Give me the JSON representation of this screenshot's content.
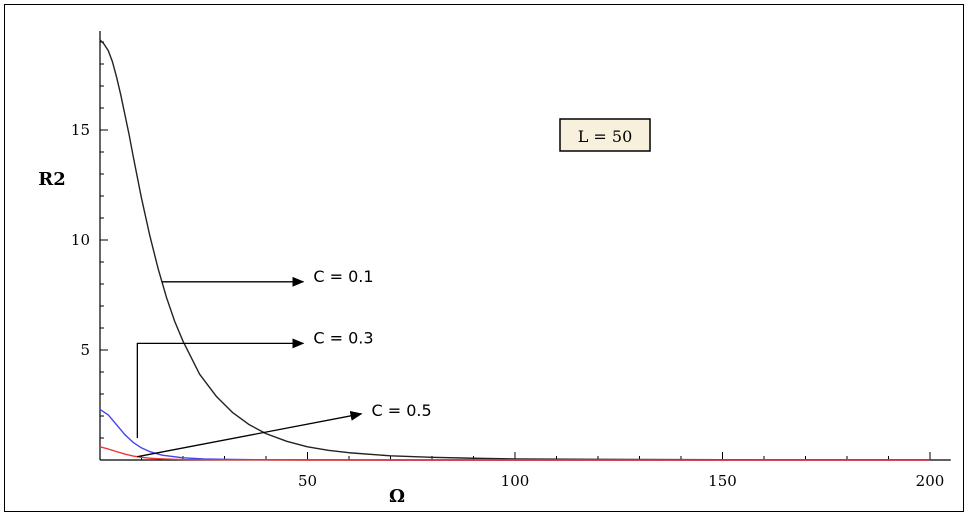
{
  "chart_data": {
    "type": "line",
    "xlabel": "Ω",
    "ylabel": "R2",
    "xlim": [
      0,
      205
    ],
    "ylim": [
      0,
      19.5
    ],
    "x_ticks": [
      50,
      100,
      150,
      200
    ],
    "y_ticks": [
      5,
      10,
      15
    ],
    "grid": false,
    "legend_box": "L = 50",
    "series": [
      {
        "color": "#222222",
        "x": [
          0,
          1,
          2,
          3,
          4,
          5,
          6,
          7,
          8,
          10,
          12,
          14,
          16,
          18,
          20,
          24,
          28,
          32,
          36,
          40,
          45,
          50,
          55,
          60,
          70,
          80,
          90,
          100,
          120,
          140,
          160,
          180,
          200
        ],
        "y": [
          19.1,
          18.9,
          18.6,
          18.1,
          17.4,
          16.6,
          15.7,
          14.8,
          13.8,
          11.9,
          10.2,
          8.7,
          7.4,
          6.3,
          5.4,
          3.9,
          2.9,
          2.15,
          1.6,
          1.2,
          0.85,
          0.6,
          0.44,
          0.33,
          0.19,
          0.12,
          0.08,
          0.05,
          0.03,
          0.02,
          0.01,
          0.01,
          0.01
        ]
      },
      {
        "color": "#4444ee",
        "x": [
          0,
          2,
          4,
          6,
          8,
          10,
          12,
          15,
          20,
          25,
          30,
          40,
          50,
          70,
          100,
          150,
          200
        ],
        "y": [
          2.3,
          2.05,
          1.6,
          1.15,
          0.8,
          0.55,
          0.38,
          0.22,
          0.1,
          0.05,
          0.03,
          0.01,
          0.01,
          0.0,
          0.0,
          0.0,
          0.0
        ]
      },
      {
        "color": "#ee3333",
        "x": [
          0,
          2,
          4,
          6,
          8,
          10,
          12,
          15,
          20,
          30,
          50,
          100,
          200
        ],
        "y": [
          0.6,
          0.5,
          0.38,
          0.27,
          0.18,
          0.12,
          0.08,
          0.05,
          0.02,
          0.01,
          0.0,
          0.0,
          0.0
        ]
      }
    ],
    "annotations": [
      {
        "text": "C = 0.1",
        "from": [
          15,
          8.1
        ],
        "to": [
          49,
          8.1
        ]
      },
      {
        "text": "C = 0.3",
        "from": [
          9,
          1.0
        ],
        "to": [
          49,
          5.3
        ]
      },
      {
        "text": "C = 0.5",
        "from": [
          9,
          0.15
        ],
        "to": [
          63,
          2.1
        ]
      }
    ]
  }
}
